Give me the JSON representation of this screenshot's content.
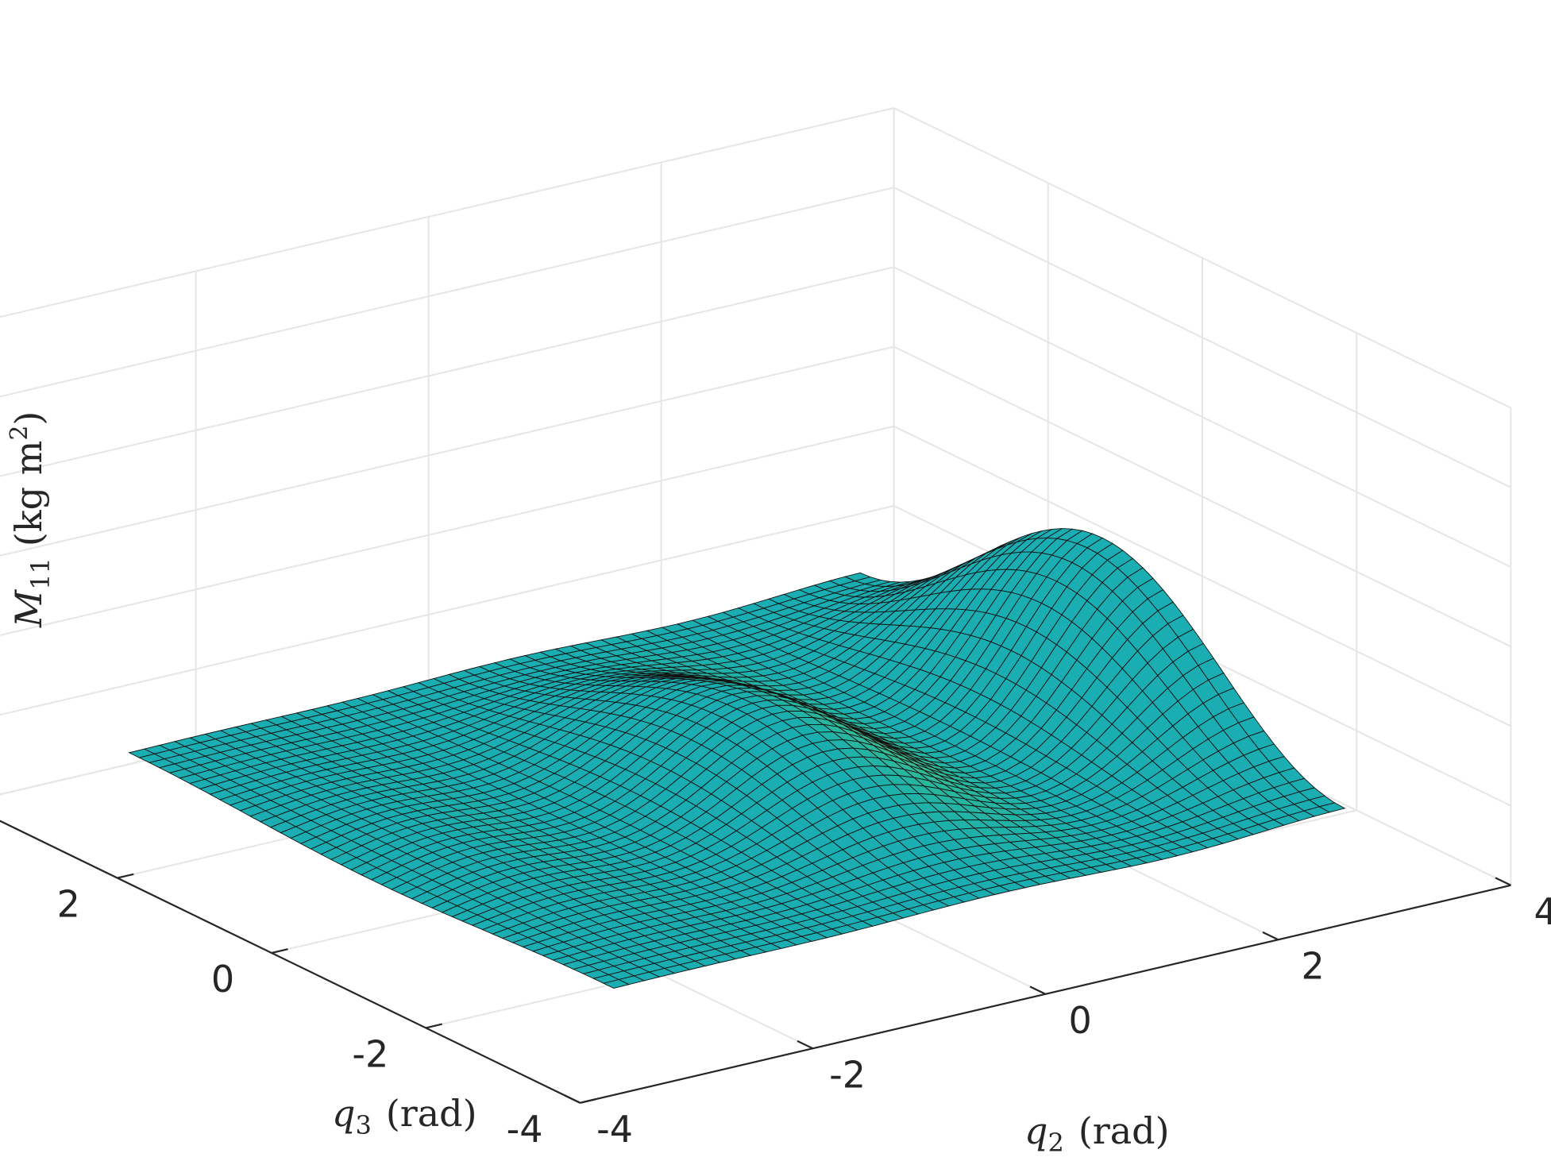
{
  "chart_data": {
    "type": "surface",
    "function": "M11 = 1.5 + (0.5 + 0.18*q2) * (1 + cos(2*q2)) * (1 + 0.9*cos(q3))",
    "x": {
      "var": "q2",
      "range": [
        -3.14159,
        3.14159
      ],
      "samples": 49
    },
    "y": {
      "var": "q3",
      "range": [
        -3.14159,
        3.14159
      ],
      "samples": 49
    },
    "colormap": "parula",
    "xlim": [
      -4,
      4
    ],
    "ylim": [
      -4,
      4
    ],
    "zlim": [
      0,
      12
    ],
    "xticks": [
      "-4",
      "-2",
      "0",
      "2",
      "4"
    ],
    "yticks": [
      "-4",
      "-2",
      "0",
      "2",
      "4"
    ],
    "zticks": [
      "0",
      "2",
      "4",
      "6",
      "8",
      "10",
      "12"
    ],
    "grid": true,
    "labels": {
      "x_sym": "q",
      "x_sub": "2",
      "x_unit": "(rad)",
      "y_sym": "q",
      "y_sub": "3",
      "y_unit": "(rad)",
      "z_sym": "M",
      "z_sub": "11",
      "z_unit_pre": "(kg m",
      "z_unit_sup": "2",
      "z_unit_post": ")"
    }
  }
}
